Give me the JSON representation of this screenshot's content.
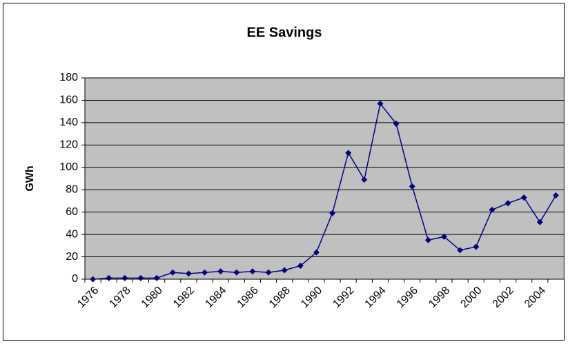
{
  "chart_data": {
    "type": "line",
    "title": "EE Savings",
    "y_label": "GWh",
    "categories": [
      1976,
      null,
      1978,
      null,
      1980,
      null,
      1982,
      null,
      1984,
      null,
      1986,
      null,
      1988,
      null,
      1990,
      null,
      1992,
      null,
      1994,
      null,
      1996,
      null,
      1998,
      null,
      2000,
      null,
      2002,
      null,
      2004,
      null
    ],
    "values": [
      0,
      1,
      1,
      1,
      1,
      6,
      5,
      6,
      7,
      6,
      7,
      6,
      8,
      12,
      24,
      59,
      113,
      89,
      157,
      139,
      83,
      35,
      38,
      26,
      29,
      62,
      68,
      73,
      51,
      75
    ],
    "color": "#000080",
    "ylim": [
      0,
      180
    ],
    "yticks": [
      0,
      20,
      40,
      60,
      80,
      100,
      120,
      140,
      160,
      180
    ],
    "grid": true
  }
}
